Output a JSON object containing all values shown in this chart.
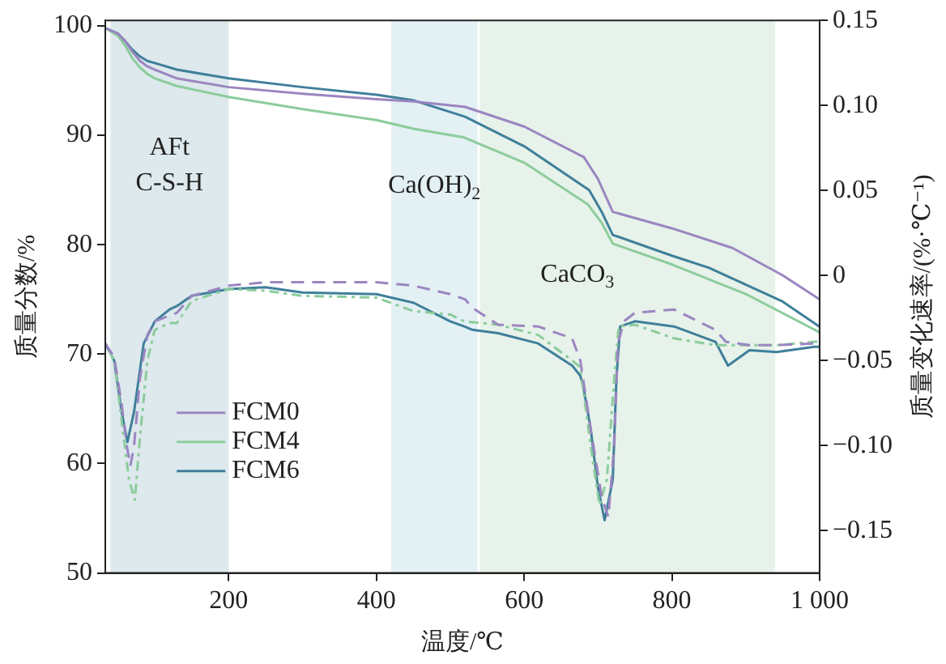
{
  "chart_data": {
    "type": "line",
    "xlabel": "温度/℃",
    "ylabel": "质量分数/%",
    "y2label": "质量变化速率/(%·℃⁻¹)",
    "xlim": [
      33,
      1000
    ],
    "xticks": [
      200,
      400,
      600,
      800,
      {
        "value": 1000,
        "label": "1 000"
      }
    ],
    "ylim": [
      50,
      100.5
    ],
    "yticks": [
      50,
      60,
      70,
      80,
      90,
      100
    ],
    "y2lim": [
      -0.175,
      0.15
    ],
    "y2ticks": [
      {
        "value": -0.15,
        "label": "−0.15"
      },
      {
        "value": -0.1,
        "label": "−0.10"
      },
      {
        "value": -0.05,
        "label": "−0.05"
      },
      0,
      0.05,
      {
        "value": 0.1,
        "label": "0.10"
      },
      0.15
    ],
    "grid": false,
    "legend": "left",
    "marker": "none",
    "bands": [
      {
        "axis": "x",
        "from": 40,
        "to": 200,
        "color": "#dde9ed",
        "label": "AFt\nC-S-H"
      },
      {
        "axis": "x",
        "from": 420,
        "to": 537,
        "color": "#e3f0f4",
        "label": "Ca(OH)$_{2}$"
      },
      {
        "axis": "x",
        "from": 540,
        "to": 940,
        "color": "#e7f2ea",
        "label": "CaCO$_{3}$"
      }
    ],
    "series": [
      {
        "name": "FCM0",
        "color": "#9b86c0",
        "line_style": "solid",
        "axis": "y",
        "x": [
          33,
          50,
          60,
          70,
          80,
          90,
          100,
          130,
          200,
          300,
          400,
          450,
          520,
          600,
          681,
          700,
          720,
          800,
          882,
          950,
          1000
        ],
        "values": [
          99.8,
          99.3,
          98.6,
          97.6,
          96.8,
          96.3,
          96.0,
          95.2,
          94.4,
          93.8,
          93.3,
          93.1,
          92.6,
          90.8,
          88.0,
          86.0,
          83.0,
          81.5,
          79.7,
          77.2,
          75.0
        ]
      },
      {
        "name": "FCM4",
        "color": "#8ccc9c",
        "line_style": "solid",
        "axis": "y",
        "x": [
          33,
          50,
          60,
          70,
          80,
          90,
          100,
          130,
          200,
          300,
          400,
          450,
          519,
          600,
          686,
          705,
          720,
          800,
          900,
          1000
        ],
        "values": [
          99.8,
          99.1,
          98.2,
          97.0,
          96.2,
          95.6,
          95.2,
          94.5,
          93.5,
          92.4,
          91.4,
          90.6,
          89.8,
          87.5,
          83.7,
          82.0,
          80.1,
          78.2,
          75.5,
          72.0
        ]
      },
      {
        "name": "FCM6",
        "color": "#3f7f9a",
        "line_style": "solid",
        "axis": "y",
        "x": [
          33,
          50,
          60,
          70,
          80,
          90,
          100,
          130,
          200,
          300,
          400,
          450,
          520,
          600,
          688,
          705,
          720,
          800,
          850,
          950,
          1000
        ],
        "values": [
          99.8,
          99.3,
          98.6,
          97.8,
          97.2,
          96.8,
          96.6,
          96.0,
          95.2,
          94.4,
          93.7,
          93.2,
          91.7,
          89.0,
          85.0,
          83.0,
          80.9,
          79.0,
          77.9,
          74.8,
          72.5
        ]
      },
      {
        "color": "#9b86c0",
        "line_style": "dashed",
        "axis": "y2",
        "x": [
          33,
          45,
          55,
          62,
          67,
          72,
          80,
          90,
          100,
          130,
          150,
          200,
          250,
          300,
          400,
          450,
          500,
          520,
          530,
          565,
          619,
          665,
          676,
          690,
          705,
          714,
          722,
          727,
          735,
          750,
          803,
          859,
          873,
          905,
          942,
          993,
          1000
        ],
        "values": [
          -0.04,
          -0.048,
          -0.075,
          -0.1,
          -0.112,
          -0.1,
          -0.06,
          -0.035,
          -0.027,
          -0.022,
          -0.012,
          -0.006,
          -0.004,
          -0.004,
          -0.004,
          -0.006,
          -0.011,
          -0.014,
          -0.019,
          -0.029,
          -0.03,
          -0.037,
          -0.05,
          -0.09,
          -0.13,
          -0.142,
          -0.1,
          -0.04,
          -0.027,
          -0.022,
          -0.02,
          -0.032,
          -0.039,
          -0.041,
          -0.041,
          -0.04,
          -0.04
        ]
      },
      {
        "color": "#8ccc9c",
        "line_style": "dotted",
        "axis": "y2",
        "x": [
          33,
          45,
          55,
          65,
          73,
          80,
          90,
          100,
          120,
          130,
          150,
          200,
          250,
          300,
          400,
          450,
          500,
          519,
          565,
          619,
          665,
          676,
          690,
          702,
          712,
          722,
          728,
          750,
          803,
          859,
          905,
          942,
          993,
          1000
        ],
        "values": [
          -0.04,
          -0.05,
          -0.085,
          -0.12,
          -0.132,
          -0.095,
          -0.05,
          -0.032,
          -0.028,
          -0.028,
          -0.015,
          -0.008,
          -0.009,
          -0.012,
          -0.013,
          -0.021,
          -0.023,
          -0.027,
          -0.029,
          -0.035,
          -0.05,
          -0.054,
          -0.1,
          -0.135,
          -0.12,
          -0.06,
          -0.03,
          -0.029,
          -0.037,
          -0.041,
          -0.041,
          -0.041,
          -0.039,
          -0.039
        ]
      },
      {
        "color": "#3f7f9a",
        "line_style": "solid",
        "axis": "y2",
        "x": [
          33,
          45,
          55,
          63,
          72,
          85,
          100,
          120,
          130,
          150,
          200,
          250,
          300,
          400,
          450,
          500,
          519,
          530,
          565,
          619,
          665,
          676,
          680,
          690,
          700,
          709,
          720,
          725,
          730,
          750,
          803,
          859,
          876,
          905,
          942,
          993,
          1000
        ],
        "values": [
          -0.04,
          -0.05,
          -0.08,
          -0.098,
          -0.08,
          -0.04,
          -0.027,
          -0.02,
          -0.018,
          -0.012,
          -0.008,
          -0.007,
          -0.01,
          -0.011,
          -0.016,
          -0.027,
          -0.03,
          -0.032,
          -0.034,
          -0.04,
          -0.053,
          -0.059,
          -0.065,
          -0.09,
          -0.125,
          -0.144,
          -0.12,
          -0.06,
          -0.03,
          -0.027,
          -0.03,
          -0.039,
          -0.053,
          -0.044,
          -0.045,
          -0.042,
          -0.042
        ]
      }
    ]
  }
}
